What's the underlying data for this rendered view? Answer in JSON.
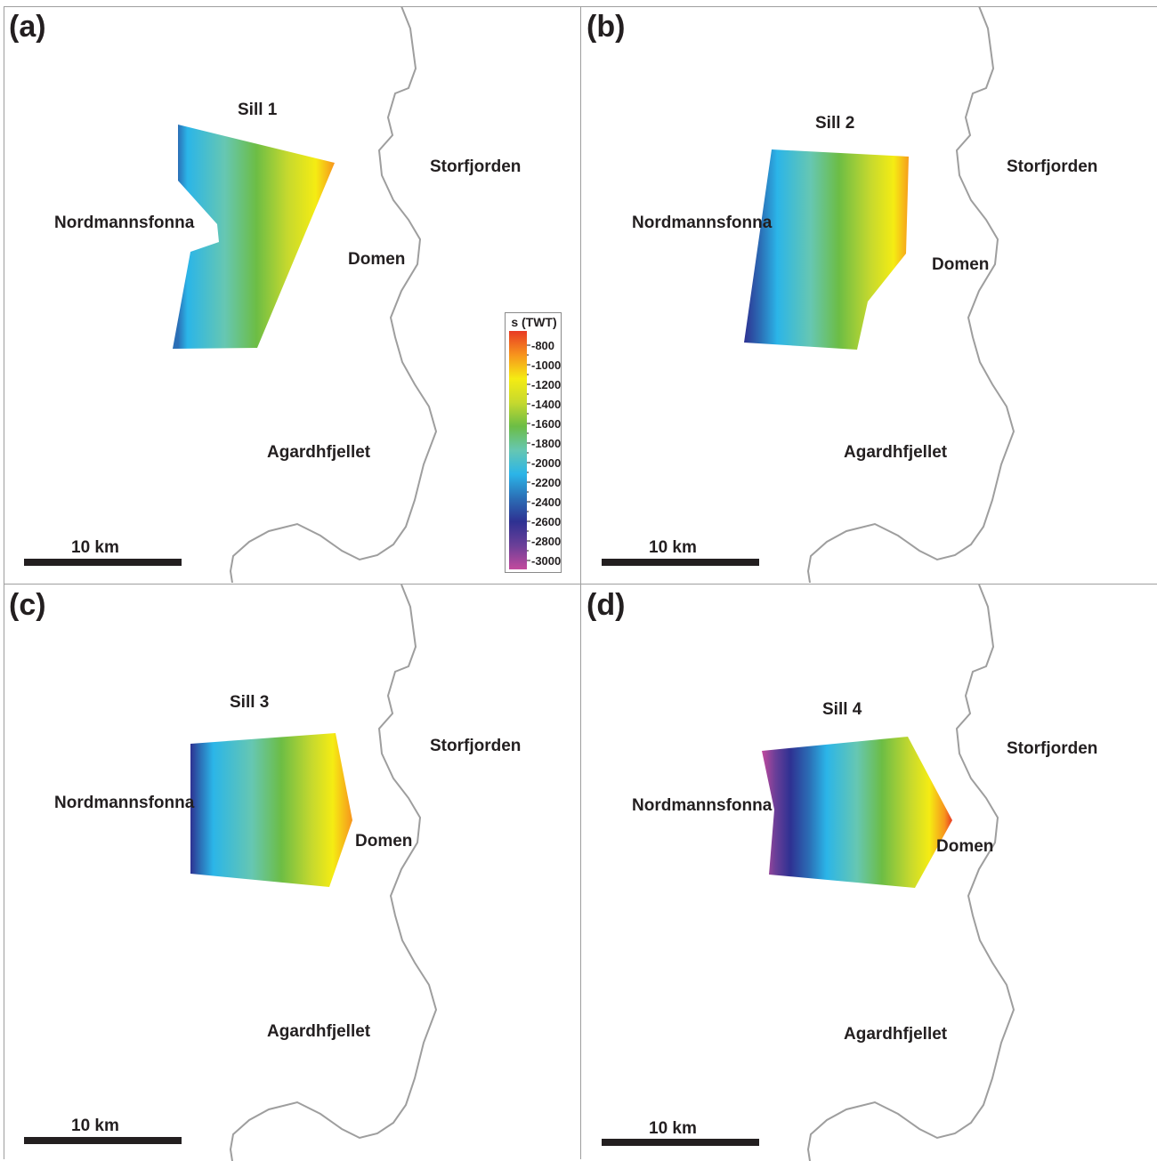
{
  "panels": [
    {
      "label": "(a)",
      "sill": "Sill 1",
      "place_left": "Nordmannsfonna",
      "place_east": "Storfjorden",
      "place_mid": "Domen",
      "place_south": "Agardhfjellet",
      "scale": "10 km"
    },
    {
      "label": "(b)",
      "sill": "Sill 2",
      "place_left": "Nordmannsfonna",
      "place_east": "Storfjorden",
      "place_mid": "Domen",
      "place_south": "Agardhfjellet",
      "scale": "10 km"
    },
    {
      "label": "(c)",
      "sill": "Sill 3",
      "place_left": "Nordmannsfonna",
      "place_east": "Storfjorden",
      "place_mid": "Domen",
      "place_south": "Agardhfjellet",
      "scale": "10 km"
    },
    {
      "label": "(d)",
      "sill": "Sill 4",
      "place_left": "Nordmannsfonna",
      "place_east": "Storfjorden",
      "place_mid": "Domen",
      "place_south": "Agardhfjellet",
      "scale": "10 km"
    }
  ],
  "legend": {
    "title": "s (TWT)",
    "ticks": [
      "-800",
      "-1000",
      "-1200",
      "-1400",
      "-1600",
      "-1800",
      "-2000",
      "-2200",
      "-2400",
      "-2600",
      "-2800",
      "-3000"
    ],
    "colors": [
      "#e83a24",
      "#f7941d",
      "#f5ec13",
      "#c6d92e",
      "#6cbd45",
      "#66c7b2",
      "#2bb5e8",
      "#2b6fb6",
      "#2e3192",
      "#6b3f98",
      "#c34a9d"
    ]
  },
  "colors": {
    "coastline": "#9e9e9e",
    "text": "#231f20",
    "panel_border": "#9e9e9e"
  }
}
